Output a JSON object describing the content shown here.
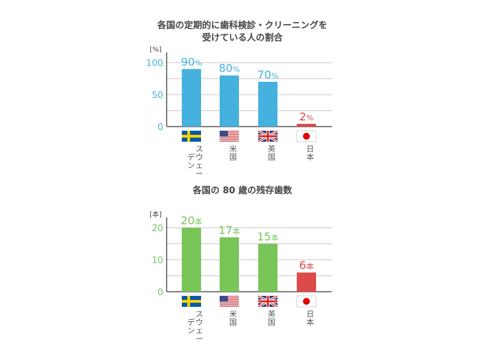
{
  "chart_data": [
    {
      "type": "bar",
      "title": [
        "各国の定期的に歯科検診・クリーニングを",
        "受けている人の割合"
      ],
      "ylabel": "[%]",
      "ylim": [
        0,
        100
      ],
      "yticks": [
        "0",
        "50",
        "100"
      ],
      "ytick_values": [
        0,
        50,
        100
      ],
      "grid": true,
      "grid_step": 25,
      "categories": [
        "スウェーデン",
        "米国",
        "英国",
        "日本"
      ],
      "flags": [
        "sweden-flag",
        "usa-flag",
        "uk-flag",
        "japan-flag"
      ],
      "values": [
        90,
        80,
        70,
        2
      ],
      "value_unit": "%",
      "colors": [
        "#45b1de",
        "#45b1de",
        "#45b1de",
        "#e04848"
      ],
      "tick_color": "#45b1de"
    },
    {
      "type": "bar",
      "title": [
        "各国の 80 歳の残存歯数"
      ],
      "ylabel": "[本]",
      "ylim": [
        0,
        20
      ],
      "yticks": [
        "0",
        "10",
        "20"
      ],
      "ytick_values": [
        0,
        10,
        20
      ],
      "grid": true,
      "grid_step": 5,
      "categories": [
        "スウェーデン",
        "米国",
        "英国",
        "日本"
      ],
      "flags": [
        "sweden-flag",
        "usa-flag",
        "uk-flag",
        "japan-flag"
      ],
      "values": [
        20,
        17,
        15,
        6
      ],
      "value_unit": "本",
      "colors": [
        "#78c558",
        "#78c558",
        "#78c558",
        "#dc4a4a"
      ],
      "tick_color": "#78c558"
    }
  ]
}
